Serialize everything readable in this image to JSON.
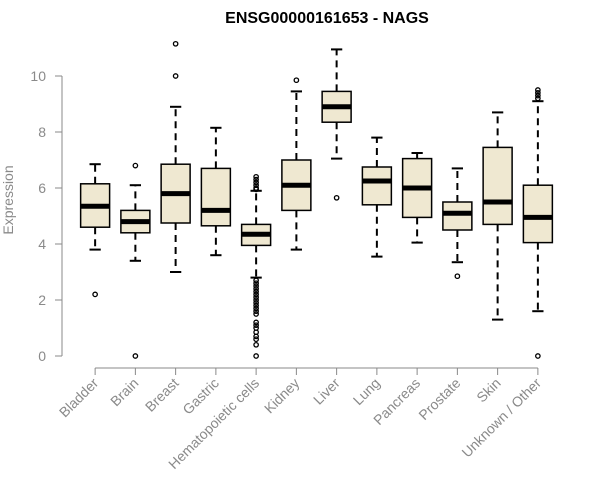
{
  "chart_data": {
    "type": "boxplot",
    "title": "ENSG00000161653 - NAGS",
    "xlabel": "",
    "ylabel": "Expression",
    "ylim": [
      0,
      11.2
    ],
    "yticks": [
      0,
      2,
      4,
      6,
      8,
      10
    ],
    "box_color": "#efe8d1",
    "categories": [
      "Bladder",
      "Brain",
      "Breast",
      "Gastric",
      "Hematopoietic cells",
      "Kidney",
      "Liver",
      "Lung",
      "Pancreas",
      "Prostate",
      "Skin",
      "Unknown / Other"
    ],
    "boxes": [
      {
        "category": "Bladder",
        "whisker_low": 3.8,
        "q1": 4.6,
        "median": 5.35,
        "q3": 6.15,
        "whisker_high": 6.85,
        "outliers": [
          2.2
        ]
      },
      {
        "category": "Brain",
        "whisker_low": 3.4,
        "q1": 4.4,
        "median": 4.8,
        "q3": 5.2,
        "whisker_high": 6.1,
        "outliers": [
          0.0,
          6.8
        ]
      },
      {
        "category": "Breast",
        "whisker_low": 3.0,
        "q1": 4.75,
        "median": 5.8,
        "q3": 6.85,
        "whisker_high": 8.9,
        "outliers": [
          10.0,
          11.15
        ]
      },
      {
        "category": "Gastric",
        "whisker_low": 3.6,
        "q1": 4.65,
        "median": 5.2,
        "q3": 6.7,
        "whisker_high": 8.15,
        "outliers": []
      },
      {
        "category": "Hematopoietic cells",
        "whisker_low": 2.8,
        "q1": 3.95,
        "median": 4.35,
        "q3": 4.7,
        "whisker_high": 5.9,
        "outliers": [
          0.0,
          0.4,
          0.6,
          0.7,
          0.85,
          1.0,
          1.1,
          1.2,
          1.5,
          1.6,
          1.7,
          1.8,
          1.9,
          2.0,
          2.1,
          2.2,
          2.3,
          2.4,
          2.5,
          2.6,
          2.7,
          5.95,
          6.0,
          6.1,
          6.2,
          6.3,
          6.4
        ]
      },
      {
        "category": "Kidney",
        "whisker_low": 3.8,
        "q1": 5.2,
        "median": 6.1,
        "q3": 7.0,
        "whisker_high": 9.45,
        "outliers": [
          9.85
        ]
      },
      {
        "category": "Liver",
        "whisker_low": 7.05,
        "q1": 8.35,
        "median": 8.9,
        "q3": 9.45,
        "whisker_high": 10.95,
        "outliers": [
          5.65
        ]
      },
      {
        "category": "Lung",
        "whisker_low": 3.55,
        "q1": 5.4,
        "median": 6.25,
        "q3": 6.75,
        "whisker_high": 7.8,
        "outliers": []
      },
      {
        "category": "Pancreas",
        "whisker_low": 4.05,
        "q1": 4.95,
        "median": 6.0,
        "q3": 7.05,
        "whisker_high": 7.25,
        "outliers": []
      },
      {
        "category": "Prostate",
        "whisker_low": 3.35,
        "q1": 4.5,
        "median": 5.1,
        "q3": 5.5,
        "whisker_high": 6.7,
        "outliers": [
          2.85
        ]
      },
      {
        "category": "Skin",
        "whisker_low": 1.3,
        "q1": 4.7,
        "median": 5.5,
        "q3": 7.45,
        "whisker_high": 8.7,
        "outliers": []
      },
      {
        "category": "Unknown / Other",
        "whisker_low": 1.6,
        "q1": 4.05,
        "median": 4.95,
        "q3": 6.1,
        "whisker_high": 9.1,
        "outliers": [
          0.0,
          9.2,
          9.3,
          9.4,
          9.5
        ]
      }
    ]
  }
}
